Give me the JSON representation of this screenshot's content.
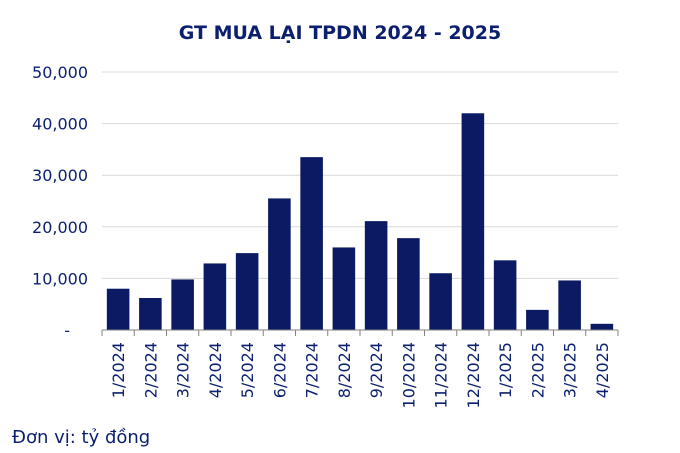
{
  "chart_data": {
    "type": "bar",
    "title": "GT MUA LẠI TPDN 2024 - 2025",
    "categories": [
      "1/2024",
      "2/2024",
      "3/2024",
      "4/2024",
      "5/2024",
      "6/2024",
      "7/2024",
      "8/2024",
      "9/2024",
      "10/2024",
      "11/2024",
      "12/2024",
      "1/2025",
      "2/2025",
      "3/2025",
      "4/2025"
    ],
    "values": [
      8000,
      6200,
      9800,
      12900,
      14900,
      25500,
      33500,
      16000,
      21100,
      17800,
      11000,
      42000,
      13500,
      3900,
      9600,
      1200
    ],
    "ylim": [
      0,
      50000
    ],
    "yticks": [
      0,
      10000,
      20000,
      30000,
      40000,
      50000
    ],
    "ytick_labels": [
      "-",
      "10,000",
      "20,000",
      "30,000",
      "40,000",
      "50,000"
    ],
    "grid": true,
    "bar_color": "#0b1a63",
    "text_color": "#0b1f6e",
    "grid_color": "#d9d9d9"
  },
  "footnote": "Đơn vị: tỷ đồng"
}
